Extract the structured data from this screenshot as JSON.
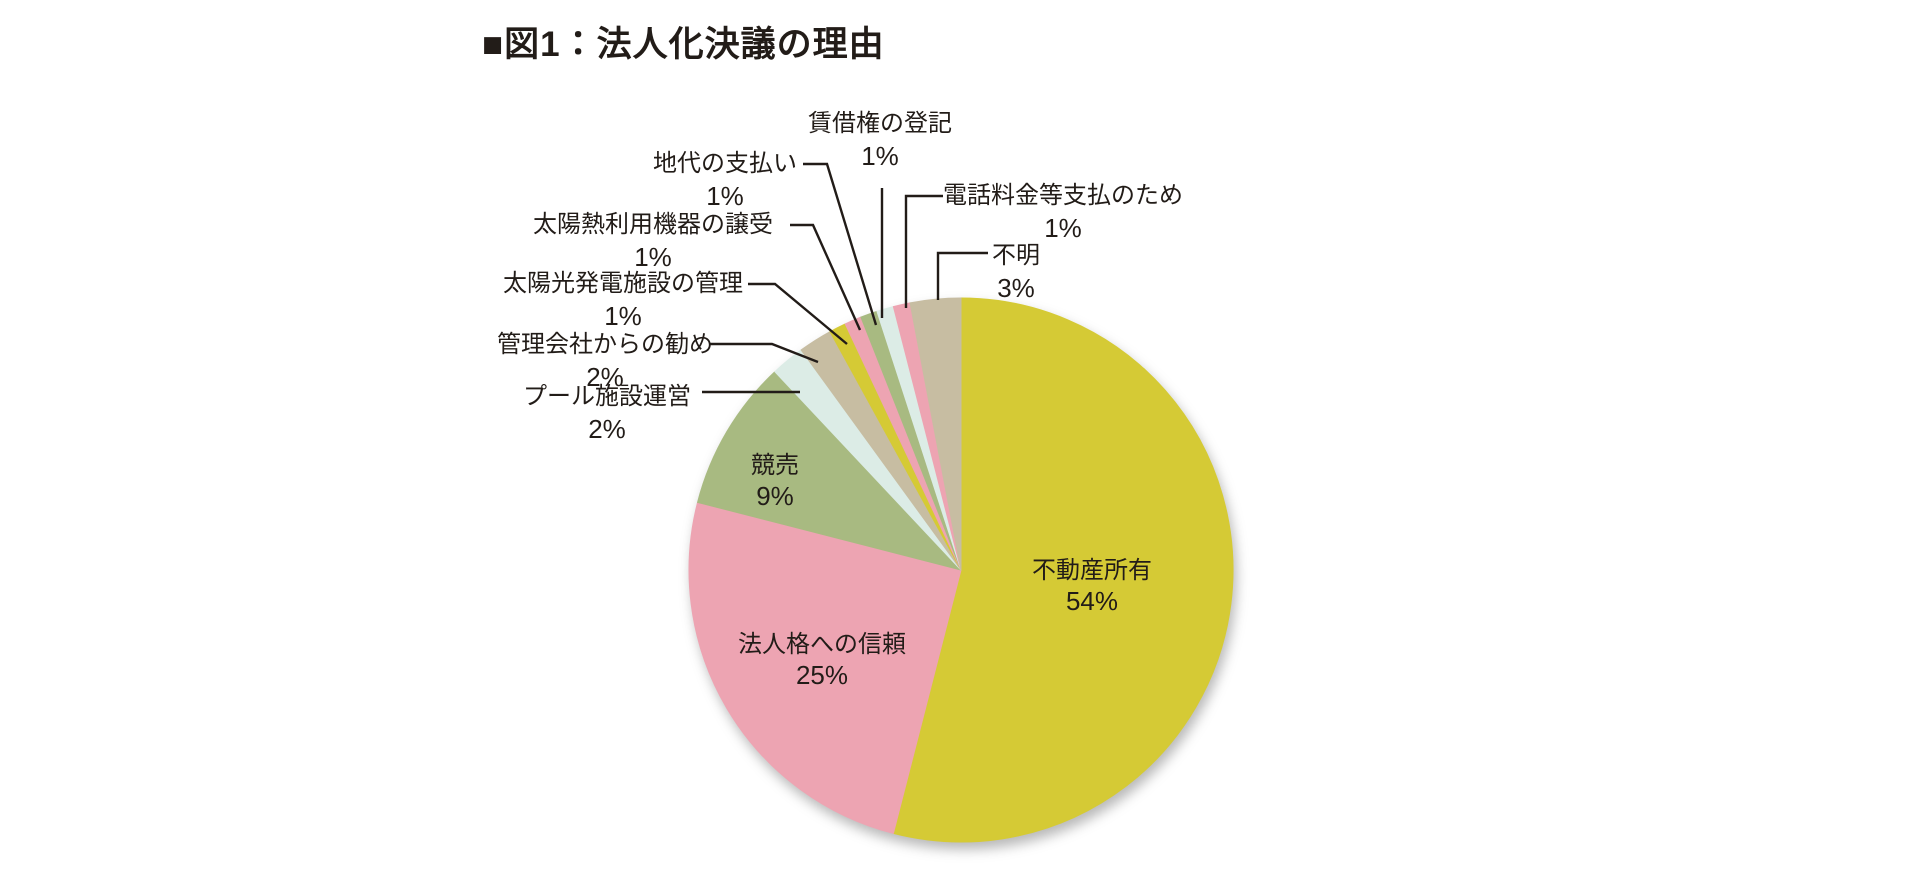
{
  "figure": {
    "title": "■図1：法人化決議の理由"
  },
  "chart_data": {
    "type": "pie",
    "title": "図1：法人化決議の理由",
    "unit": "%",
    "start_angle_deg": 0,
    "direction": "clockwise",
    "legend": "none",
    "text_color": "#221c18",
    "slices": [
      {
        "label": "不動産所有",
        "value": 54,
        "color": "#d5ca35",
        "label_position": "inside"
      },
      {
        "label": "法人格への信頼",
        "value": 25,
        "color": "#eda4b2",
        "label_position": "inside"
      },
      {
        "label": "競売",
        "value": 9,
        "color": "#a8ba81",
        "label_position": "inside"
      },
      {
        "label": "プール施設運営",
        "value": 2,
        "color": "#dcece6",
        "label_position": "outside"
      },
      {
        "label": "管理会社からの勧め",
        "value": 2,
        "color": "#c7bda2",
        "label_position": "outside"
      },
      {
        "label": "太陽光発電施設の管理",
        "value": 1,
        "color": "#d5ca35",
        "label_position": "outside"
      },
      {
        "label": "太陽熱利用機器の譲受",
        "value": 1,
        "color": "#eda4b2",
        "label_position": "outside"
      },
      {
        "label": "地代の支払い",
        "value": 1,
        "color": "#a8ba81",
        "label_position": "outside"
      },
      {
        "label": "賃借権の登記",
        "value": 1,
        "color": "#dcece6",
        "label_position": "outside"
      },
      {
        "label": "電話料金等支払のため",
        "value": 1,
        "color": "#eda4b2",
        "label_position": "outside"
      },
      {
        "label": "不明",
        "value": 3,
        "color": "#c7bda2",
        "label_position": "outside"
      }
    ]
  }
}
